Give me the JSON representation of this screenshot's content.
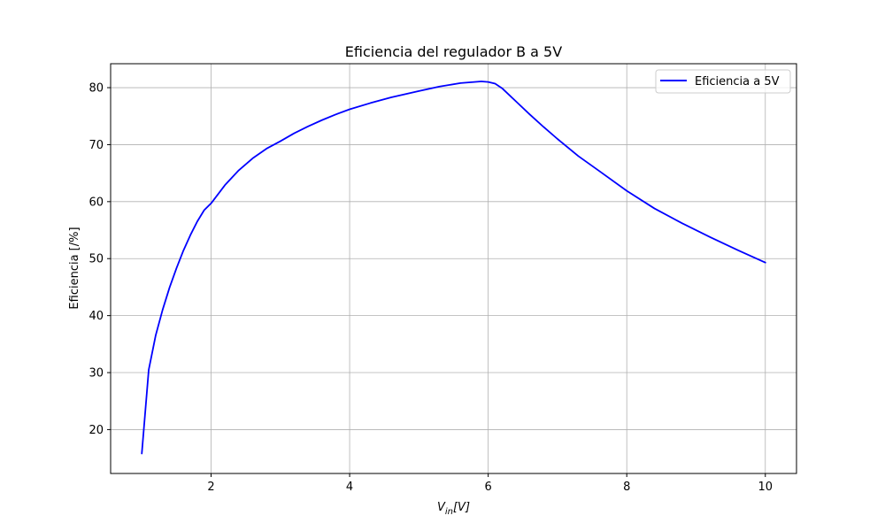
{
  "chart_data": {
    "type": "line",
    "title": "Eficiencia del regulador B a 5V",
    "xlabel": {
      "main": "V",
      "sub": "in",
      "suffix": "[V]"
    },
    "ylabel": "Eficiencia [/%]",
    "xlim": [
      0.55,
      10.45
    ],
    "ylim": [
      12.3,
      84.2
    ],
    "xticks": [
      2,
      4,
      6,
      8,
      10
    ],
    "yticks": [
      20,
      30,
      40,
      50,
      60,
      70,
      80
    ],
    "grid": true,
    "legend_position": "top-right",
    "series": [
      {
        "name": "Eficiencia a 5V",
        "color": "#0000ff",
        "x": [
          1.0,
          1.1,
          1.2,
          1.3,
          1.4,
          1.5,
          1.6,
          1.7,
          1.8,
          1.9,
          2.0,
          2.2,
          2.4,
          2.6,
          2.8,
          3.0,
          3.2,
          3.4,
          3.6,
          3.8,
          4.0,
          4.3,
          4.6,
          5.0,
          5.3,
          5.6,
          5.8,
          5.9,
          6.0,
          6.1,
          6.2,
          6.4,
          6.6,
          6.8,
          7.0,
          7.3,
          7.6,
          8.0,
          8.4,
          8.8,
          9.2,
          9.6,
          10.0
        ],
        "y": [
          15.8,
          30.5,
          36.5,
          41.0,
          44.9,
          48.3,
          51.4,
          54.1,
          56.5,
          58.5,
          59.7,
          62.9,
          65.5,
          67.6,
          69.3,
          70.6,
          72.0,
          73.2,
          74.3,
          75.3,
          76.2,
          77.3,
          78.3,
          79.4,
          80.2,
          80.8,
          81.0,
          81.1,
          81.0,
          80.7,
          79.9,
          77.6,
          75.3,
          73.1,
          71.0,
          68.0,
          65.4,
          61.9,
          58.8,
          56.2,
          53.8,
          51.5,
          49.3
        ]
      }
    ]
  }
}
